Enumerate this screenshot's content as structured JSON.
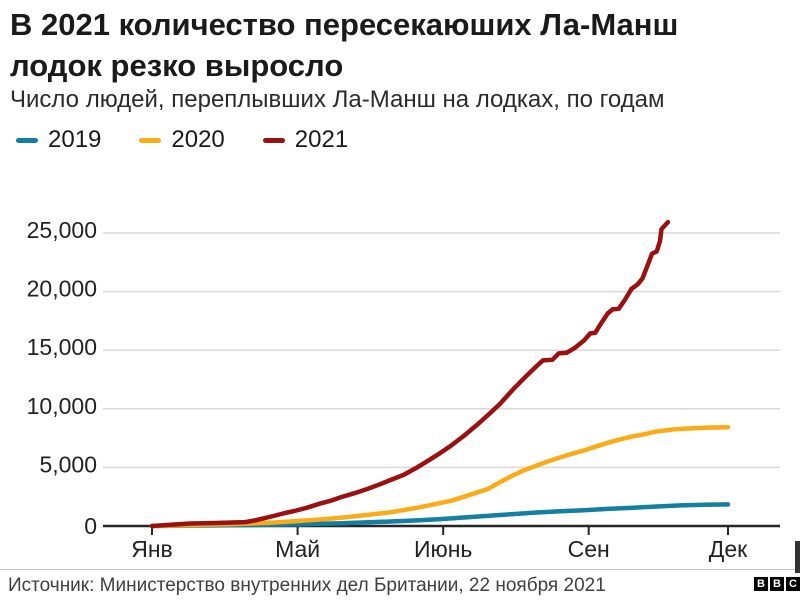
{
  "header": {
    "title": "В 2021 количество пересекаюших Ла-Манш лодок резко выросло",
    "subtitle": "Число людей, переплывших Ла-Манш на лодках, по годам"
  },
  "legend": {
    "items": [
      {
        "label": "2019",
        "color": "#1380A1"
      },
      {
        "label": "2020",
        "color": "#FAAB18"
      },
      {
        "label": "2021",
        "color": "#991111"
      }
    ]
  },
  "chart_data": {
    "type": "line",
    "title": "В 2021 количество пересекаюших Ла-Манш лодок резко выросло",
    "subtitle": "Число людей, переплывших Ла-Манш на лодках, по годам",
    "xlabel": "",
    "ylabel": "",
    "x_unit": "day_of_year",
    "x_range": [
      0,
      364
    ],
    "ylim": [
      0,
      25000
    ],
    "grid": "horizontal",
    "legend_position": "top",
    "y_ticks": {
      "values": [
        0,
        5000,
        10000,
        15000,
        20000,
        25000
      ],
      "labels": [
        "0",
        "5,000",
        "10,000",
        "15,000",
        "20,000",
        "25,000"
      ]
    },
    "x_ticks": {
      "days": [
        0,
        92,
        184,
        276,
        364
      ],
      "labels": [
        "Янв",
        "Май",
        "Июнь",
        "Сен",
        "Дек"
      ]
    },
    "series": [
      {
        "name": "2019",
        "color": "#1380A1",
        "points": [
          [
            0,
            0
          ],
          [
            15,
            20
          ],
          [
            31,
            40
          ],
          [
            59,
            80
          ],
          [
            90,
            140
          ],
          [
            120,
            240
          ],
          [
            151,
            380
          ],
          [
            166,
            470
          ],
          [
            181,
            580
          ],
          [
            196,
            720
          ],
          [
            212,
            860
          ],
          [
            227,
            1010
          ],
          [
            243,
            1150
          ],
          [
            258,
            1260
          ],
          [
            273,
            1340
          ],
          [
            288,
            1460
          ],
          [
            304,
            1560
          ],
          [
            319,
            1660
          ],
          [
            334,
            1760
          ],
          [
            349,
            1810
          ],
          [
            364,
            1840
          ]
        ]
      },
      {
        "name": "2020",
        "color": "#FAAB18",
        "points": [
          [
            0,
            0
          ],
          [
            15,
            40
          ],
          [
            31,
            90
          ],
          [
            45,
            140
          ],
          [
            59,
            190
          ],
          [
            75,
            280
          ],
          [
            90,
            400
          ],
          [
            105,
            550
          ],
          [
            120,
            720
          ],
          [
            135,
            930
          ],
          [
            151,
            1180
          ],
          [
            166,
            1520
          ],
          [
            181,
            1930
          ],
          [
            189,
            2150
          ],
          [
            196,
            2450
          ],
          [
            204,
            2800
          ],
          [
            212,
            3150
          ],
          [
            220,
            3750
          ],
          [
            227,
            4250
          ],
          [
            235,
            4750
          ],
          [
            243,
            5150
          ],
          [
            250,
            5500
          ],
          [
            258,
            5850
          ],
          [
            265,
            6150
          ],
          [
            273,
            6450
          ],
          [
            281,
            6800
          ],
          [
            288,
            7100
          ],
          [
            296,
            7400
          ],
          [
            304,
            7650
          ],
          [
            312,
            7850
          ],
          [
            318,
            8050
          ],
          [
            324,
            8150
          ],
          [
            330,
            8250
          ],
          [
            340,
            8330
          ],
          [
            352,
            8400
          ],
          [
            364,
            8430
          ]
        ]
      },
      {
        "name": "2021",
        "color": "#991111",
        "points": [
          [
            0,
            0
          ],
          [
            12,
            100
          ],
          [
            24,
            210
          ],
          [
            40,
            260
          ],
          [
            59,
            330
          ],
          [
            66,
            500
          ],
          [
            72,
            700
          ],
          [
            78,
            900
          ],
          [
            84,
            1100
          ],
          [
            90,
            1280
          ],
          [
            98,
            1560
          ],
          [
            106,
            1900
          ],
          [
            113,
            2160
          ],
          [
            120,
            2480
          ],
          [
            128,
            2800
          ],
          [
            136,
            3160
          ],
          [
            144,
            3560
          ],
          [
            151,
            3930
          ],
          [
            159,
            4360
          ],
          [
            167,
            4960
          ],
          [
            174,
            5530
          ],
          [
            181,
            6130
          ],
          [
            189,
            6860
          ],
          [
            197,
            7680
          ],
          [
            205,
            8580
          ],
          [
            212,
            9430
          ],
          [
            220,
            10430
          ],
          [
            228,
            11630
          ],
          [
            236,
            12730
          ],
          [
            243,
            13630
          ],
          [
            247,
            14130
          ],
          [
            253,
            14180
          ],
          [
            257,
            14730
          ],
          [
            262,
            14780
          ],
          [
            267,
            15180
          ],
          [
            273,
            15830
          ],
          [
            277,
            16430
          ],
          [
            280,
            16480
          ],
          [
            284,
            17330
          ],
          [
            288,
            18130
          ],
          [
            291,
            18480
          ],
          [
            295,
            18530
          ],
          [
            299,
            19330
          ],
          [
            303,
            20230
          ],
          [
            307,
            20630
          ],
          [
            310,
            21130
          ],
          [
            312,
            21830
          ],
          [
            314,
            22530
          ],
          [
            316,
            23230
          ],
          [
            319,
            23430
          ],
          [
            321,
            24330
          ],
          [
            322,
            25330
          ],
          [
            324,
            25630
          ],
          [
            326,
            25930
          ]
        ]
      }
    ]
  },
  "footer": {
    "source": "Источник: Министерство внутренних дел Британии, 22 ноября 2021",
    "logo_letters": [
      "B",
      "B",
      "C"
    ]
  }
}
